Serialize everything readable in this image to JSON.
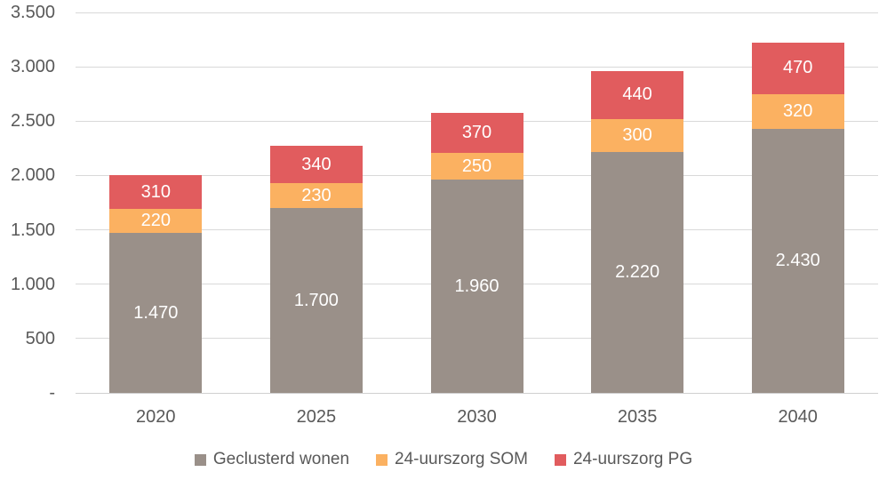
{
  "chart_data": {
    "type": "bar",
    "stacked": true,
    "title": "",
    "categories": [
      "2020",
      "2025",
      "2030",
      "2035",
      "2040"
    ],
    "series": [
      {
        "name": "Geclusterd wonen",
        "color": "#9a9089",
        "values": [
          1470,
          1700,
          1960,
          2220,
          2430
        ],
        "labels": [
          "1.470",
          "1.700",
          "1.960",
          "2.220",
          "2.430"
        ]
      },
      {
        "name": "24-uurszorg SOM",
        "color": "#fbb161",
        "values": [
          220,
          230,
          250,
          300,
          320
        ],
        "labels": [
          "220",
          "230",
          "250",
          "300",
          "320"
        ]
      },
      {
        "name": "24-uurszorg PG",
        "color": "#e15c5e",
        "values": [
          310,
          340,
          370,
          440,
          470
        ],
        "labels": [
          "310",
          "340",
          "370",
          "440",
          "470"
        ]
      }
    ],
    "ylim": [
      0,
      3500
    ],
    "ytick_step": 500,
    "yticks": [
      {
        "value": 0,
        "label": "-"
      },
      {
        "value": 500,
        "label": "500"
      },
      {
        "value": 1000,
        "label": "1.000"
      },
      {
        "value": 1500,
        "label": "1.500"
      },
      {
        "value": 2000,
        "label": "2.000"
      },
      {
        "value": 2500,
        "label": "2.500"
      },
      {
        "value": 3000,
        "label": "3.000"
      },
      {
        "value": 3500,
        "label": "3.500"
      }
    ],
    "grid": true,
    "legend_position": "bottom",
    "data_label_color": "#ffffff",
    "axis_text_color": "#595959",
    "gridline_color": "#d9d9d9"
  }
}
